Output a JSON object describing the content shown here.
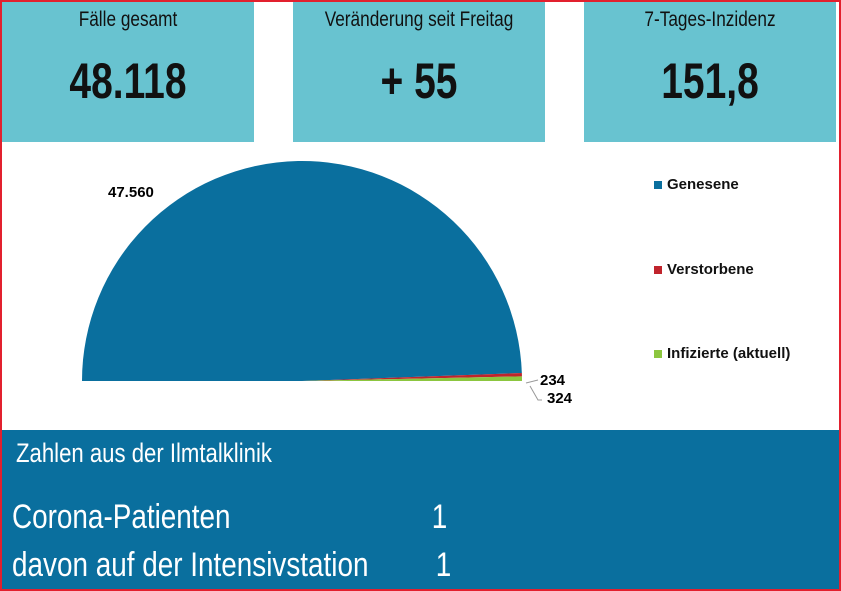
{
  "kpis": [
    {
      "label": "Fälle gesamt",
      "value": "48.118"
    },
    {
      "label": "Veränderung seit Freitag",
      "value": "+ 55"
    },
    {
      "label": "7-Tages-Inzidenz",
      "value": "151,8"
    }
  ],
  "chart_data": {
    "type": "pie",
    "title": "",
    "categories": [
      "Genesene",
      "Verstorbene",
      "Infizierte (aktuell)"
    ],
    "values": [
      47560,
      234,
      324
    ],
    "labels": [
      "47.560",
      "234",
      "324"
    ],
    "colors": [
      "#0a6f9e",
      "#c0242c",
      "#8cc63f"
    ],
    "legend_position": "right"
  },
  "clinic": {
    "title": "Zahlen aus der Ilmtalklinik",
    "rows": [
      {
        "label": "Corona-Patienten",
        "value": "1"
      },
      {
        "label": "davon auf der Intensivstation",
        "value": "1"
      }
    ]
  }
}
